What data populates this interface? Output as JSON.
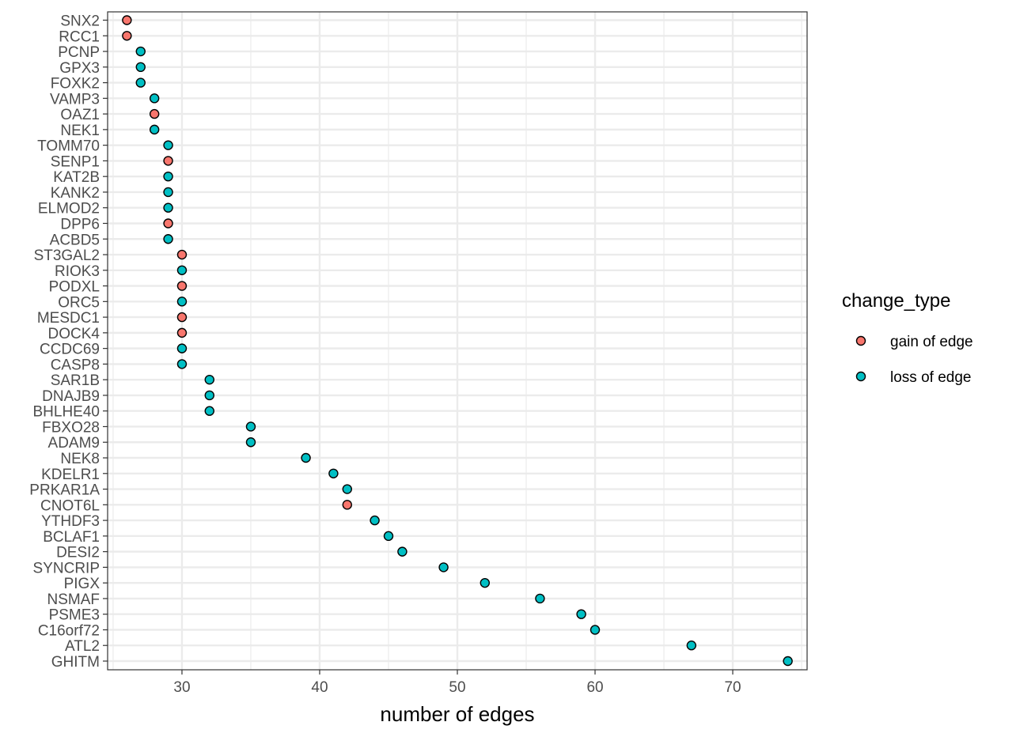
{
  "chart_data": {
    "type": "scatter",
    "title": "",
    "xlabel": "number of edges",
    "ylabel": "",
    "xlim": [
      24.6,
      75.4
    ],
    "x_ticks": [
      30,
      40,
      50,
      60,
      70
    ],
    "grid": true,
    "legend": {
      "title": "change_type",
      "placement": "right",
      "entries": [
        {
          "name": "gain of edge",
          "color": "#F8766D"
        },
        {
          "name": "loss of edge",
          "color": "#00BFC4"
        }
      ]
    },
    "series": [
      {
        "name": "gain of edge",
        "color": "#F8766D",
        "points": [
          {
            "gene": "SNX2",
            "x": 26
          },
          {
            "gene": "RCC1",
            "x": 26
          },
          {
            "gene": "OAZ1",
            "x": 28
          },
          {
            "gene": "SENP1",
            "x": 29
          },
          {
            "gene": "DPP6",
            "x": 29
          },
          {
            "gene": "ST3GAL2",
            "x": 30
          },
          {
            "gene": "PODXL",
            "x": 30
          },
          {
            "gene": "MESDC1",
            "x": 30
          },
          {
            "gene": "DOCK4",
            "x": 30
          },
          {
            "gene": "CNOT6L",
            "x": 42
          }
        ]
      },
      {
        "name": "loss of edge",
        "color": "#00BFC4",
        "points": [
          {
            "gene": "PCNP",
            "x": 27
          },
          {
            "gene": "GPX3",
            "x": 27
          },
          {
            "gene": "FOXK2",
            "x": 27
          },
          {
            "gene": "VAMP3",
            "x": 28
          },
          {
            "gene": "NEK1",
            "x": 28
          },
          {
            "gene": "TOMM70",
            "x": 29
          },
          {
            "gene": "KAT2B",
            "x": 29
          },
          {
            "gene": "KANK2",
            "x": 29
          },
          {
            "gene": "ELMOD2",
            "x": 29
          },
          {
            "gene": "ACBD5",
            "x": 29
          },
          {
            "gene": "RIOK3",
            "x": 30
          },
          {
            "gene": "ORC5",
            "x": 30
          },
          {
            "gene": "CCDC69",
            "x": 30
          },
          {
            "gene": "CASP8",
            "x": 30
          },
          {
            "gene": "SAR1B",
            "x": 32
          },
          {
            "gene": "DNAJB9",
            "x": 32
          },
          {
            "gene": "BHLHE40",
            "x": 32
          },
          {
            "gene": "FBXO28",
            "x": 35
          },
          {
            "gene": "ADAM9",
            "x": 35
          },
          {
            "gene": "NEK8",
            "x": 39
          },
          {
            "gene": "KDELR1",
            "x": 41
          },
          {
            "gene": "PRKAR1A",
            "x": 42
          },
          {
            "gene": "YTHDF3",
            "x": 44
          },
          {
            "gene": "BCLAF1",
            "x": 45
          },
          {
            "gene": "DESI2",
            "x": 46
          },
          {
            "gene": "SYNCRIP",
            "x": 49
          },
          {
            "gene": "PIGX",
            "x": 52
          },
          {
            "gene": "NSMAF",
            "x": 56
          },
          {
            "gene": "PSME3",
            "x": 59
          },
          {
            "gene": "C16orf72",
            "x": 60
          },
          {
            "gene": "ATL2",
            "x": 67
          },
          {
            "gene": "GHITM",
            "x": 74
          }
        ]
      }
    ],
    "categories": [
      "SNX2",
      "RCC1",
      "PCNP",
      "GPX3",
      "FOXK2",
      "VAMP3",
      "OAZ1",
      "NEK1",
      "TOMM70",
      "SENP1",
      "KAT2B",
      "KANK2",
      "ELMOD2",
      "DPP6",
      "ACBD5",
      "ST3GAL2",
      "RIOK3",
      "PODXL",
      "ORC5",
      "MESDC1",
      "DOCK4",
      "CCDC69",
      "CASP8",
      "SAR1B",
      "DNAJB9",
      "BHLHE40",
      "FBXO28",
      "ADAM9",
      "NEK8",
      "KDELR1",
      "PRKAR1A",
      "CNOT6L",
      "YTHDF3",
      "BCLAF1",
      "DESI2",
      "SYNCRIP",
      "PIGX",
      "NSMAF",
      "PSME3",
      "C16orf72",
      "ATL2",
      "GHITM"
    ]
  }
}
